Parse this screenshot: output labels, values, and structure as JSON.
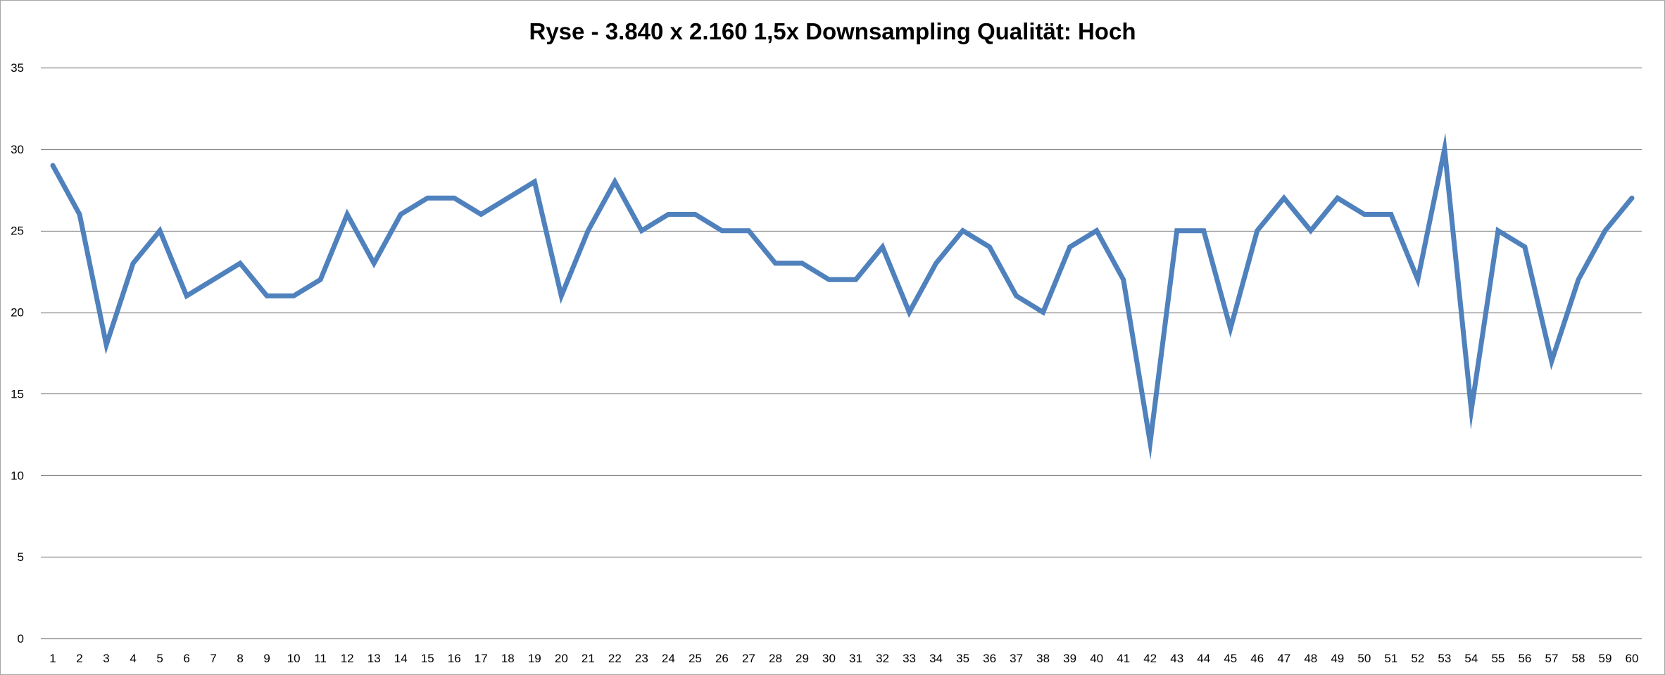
{
  "chart_data": {
    "type": "line",
    "title": "Ryse - 3.840 x 2.160 1,5x Downsampling Qualität: Hoch",
    "xlabel": "",
    "ylabel": "",
    "categories": [
      "1",
      "2",
      "3",
      "4",
      "5",
      "6",
      "7",
      "8",
      "9",
      "10",
      "11",
      "12",
      "13",
      "14",
      "15",
      "16",
      "17",
      "18",
      "19",
      "20",
      "21",
      "22",
      "23",
      "24",
      "25",
      "26",
      "27",
      "28",
      "29",
      "30",
      "31",
      "32",
      "33",
      "34",
      "35",
      "36",
      "37",
      "38",
      "39",
      "40",
      "41",
      "42",
      "43",
      "44",
      "45",
      "46",
      "47",
      "48",
      "49",
      "50",
      "51",
      "52",
      "53",
      "54",
      "55",
      "56",
      "57",
      "58",
      "59",
      "60"
    ],
    "series": [
      {
        "values": [
          29,
          26,
          18,
          23,
          25,
          21,
          22,
          23,
          21,
          21,
          22,
          26,
          23,
          26,
          27,
          27,
          26,
          27,
          28,
          21,
          25,
          28,
          25,
          26,
          26,
          25,
          25,
          23,
          23,
          22,
          22,
          24,
          20,
          23,
          25,
          24,
          21,
          20,
          24,
          25,
          22,
          12,
          25,
          25,
          19,
          25,
          27,
          25,
          27,
          26,
          26,
          22,
          30,
          14,
          25,
          24,
          17,
          22,
          25,
          27
        ],
        "color": "#4f81bd"
      }
    ],
    "ylim": [
      0,
      35
    ],
    "yticks": [
      0,
      5,
      10,
      15,
      20,
      25,
      30,
      35
    ],
    "grid": true,
    "legend": "none",
    "gridline_color": "#898989"
  }
}
